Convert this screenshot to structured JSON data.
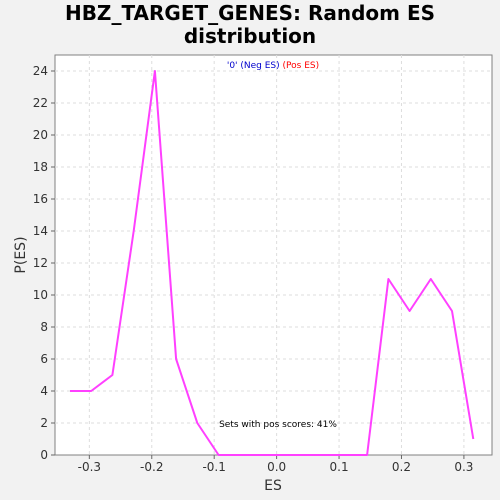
{
  "chart_data": {
    "type": "line",
    "title_line1": "HBZ_TARGET_GENES: Random ES",
    "title_line2": "distribution",
    "xlabel": "ES",
    "ylabel": "P(ES)",
    "xlim": [
      -0.355,
      0.345
    ],
    "ylim": [
      0,
      25
    ],
    "xticks": [
      -0.3,
      -0.2,
      -0.1,
      0.0,
      0.1,
      0.2,
      0.3
    ],
    "xtick_labels": [
      "-0.3",
      "-0.2",
      "-0.1",
      "0.0",
      "0.1",
      "0.2",
      "0.3"
    ],
    "yticks": [
      0,
      2,
      4,
      6,
      8,
      10,
      12,
      14,
      16,
      18,
      20,
      22,
      24
    ],
    "ytick_labels": [
      "0",
      "2",
      "4",
      "6",
      "8",
      "10",
      "12",
      "14",
      "16",
      "18",
      "20",
      "22",
      "24"
    ],
    "grid": true,
    "legend": {
      "placement": "top-center",
      "items": [
        {
          "label": "'0' (Neg ES)",
          "color": "#0000cc"
        },
        {
          "label": "(Pos ES)",
          "color": "#ff0000"
        }
      ]
    },
    "annotation": "Sets with pos scores: 41%",
    "series": [
      {
        "color": "#ff40ff",
        "x": [
          -0.331,
          -0.297,
          -0.263,
          -0.229,
          -0.195,
          -0.161,
          -0.127,
          -0.093,
          -0.059,
          -0.025,
          0.009,
          0.043,
          0.077,
          0.111,
          0.145,
          0.179,
          0.213,
          0.247,
          0.281,
          0.315
        ],
        "y": [
          4,
          4,
          5,
          14,
          24,
          6,
          2,
          0,
          0,
          0,
          0,
          0,
          0,
          0,
          0,
          11,
          9,
          11,
          9,
          1
        ]
      }
    ]
  }
}
